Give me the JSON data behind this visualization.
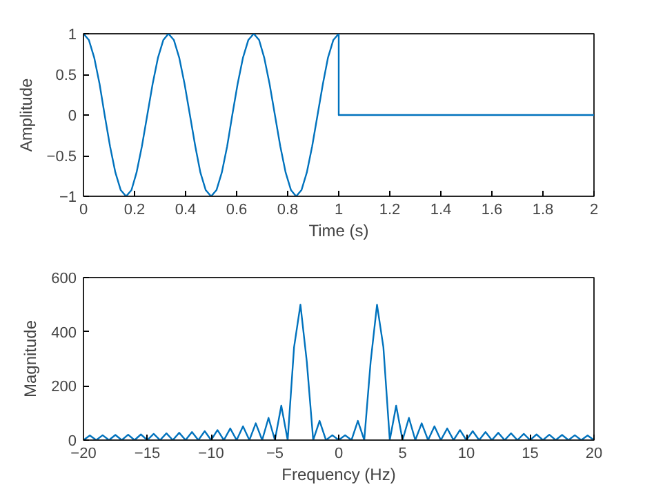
{
  "chart_data": [
    {
      "type": "line",
      "xlabel": "Time (s)",
      "ylabel": "Amplitude",
      "xlim": [
        0,
        2
      ],
      "ylim": [
        -1,
        1
      ],
      "xticks": [
        0,
        0.2,
        0.4,
        0.6,
        0.8,
        1,
        1.2,
        1.4,
        1.6,
        1.8,
        2
      ],
      "yticks": [
        -1,
        -0.5,
        0,
        0.5,
        1
      ],
      "series": [
        {
          "color": "#0072bd",
          "x": [
            0,
            0.021,
            0.042,
            0.063,
            0.083,
            0.104,
            0.125,
            0.146,
            0.167,
            0.188,
            0.208,
            0.229,
            0.25,
            0.271,
            0.292,
            0.313,
            0.333,
            0.354,
            0.375,
            0.396,
            0.417,
            0.438,
            0.458,
            0.479,
            0.5,
            0.521,
            0.542,
            0.563,
            0.583,
            0.604,
            0.625,
            0.646,
            0.667,
            0.688,
            0.708,
            0.729,
            0.75,
            0.771,
            0.792,
            0.813,
            0.833,
            0.854,
            0.875,
            0.896,
            0.917,
            0.938,
            0.958,
            0.979,
            1,
            1,
            2
          ],
          "values": [
            1,
            0.924,
            0.707,
            0.383,
            0,
            -0.383,
            -0.707,
            -0.924,
            -1,
            -0.924,
            -0.707,
            -0.383,
            0,
            0.383,
            0.707,
            0.924,
            1,
            0.924,
            0.707,
            0.383,
            0,
            -0.383,
            -0.707,
            -0.924,
            -1,
            -0.924,
            -0.707,
            -0.383,
            0,
            0.383,
            0.707,
            0.924,
            1,
            0.924,
            0.707,
            0.383,
            0,
            -0.383,
            -0.707,
            -0.924,
            -1,
            -0.924,
            -0.707,
            -0.383,
            0,
            0.383,
            0.707,
            0.924,
            1,
            0,
            0
          ]
        }
      ]
    },
    {
      "type": "line",
      "xlabel": "Frequency (Hz)",
      "ylabel": "Magnitude",
      "xlim": [
        -20,
        20
      ],
      "ylim": [
        0,
        600
      ],
      "xticks": [
        -20,
        -15,
        -10,
        -5,
        0,
        5,
        10,
        15,
        20
      ],
      "yticks": [
        0,
        200,
        400,
        600
      ],
      "series": [
        {
          "color": "#0072bd",
          "x": [
            -20,
            -19.5,
            -19,
            -18.5,
            -18,
            -17.5,
            -17,
            -16.5,
            -16,
            -15.5,
            -15,
            -14.5,
            -14,
            -13.5,
            -13,
            -12.5,
            -12,
            -11.5,
            -11,
            -10.5,
            -10,
            -9.5,
            -9,
            -8.5,
            -8,
            -7.5,
            -7,
            -6.5,
            -6,
            -5.5,
            -5,
            -4.5,
            -4,
            -3.5,
            -3,
            -2.5,
            -2,
            -1.5,
            -1,
            -0.5,
            0,
            0.5,
            1,
            1.5,
            2,
            2.5,
            3,
            3.5,
            4,
            4.5,
            5,
            5.5,
            6,
            6.5,
            7,
            7.5,
            8,
            8.5,
            9,
            9.5,
            10,
            10.5,
            11,
            11.5,
            12,
            12.5,
            13,
            13.5,
            14,
            14.5,
            15,
            15.5,
            16,
            16.5,
            17,
            17.5,
            18,
            18.5,
            19,
            19.5,
            20
          ],
          "values": [
            0,
            17,
            0,
            18,
            0,
            19,
            0,
            20,
            0,
            21,
            0,
            23,
            0,
            25,
            0,
            27,
            0,
            30,
            0,
            33,
            0,
            37,
            0,
            43,
            0,
            51,
            0,
            62,
            0,
            82,
            0,
            127,
            0,
            343,
            500,
            289,
            0,
            71,
            0,
            18,
            0,
            18,
            0,
            71,
            0,
            289,
            500,
            343,
            0,
            127,
            0,
            82,
            0,
            62,
            0,
            51,
            0,
            43,
            0,
            37,
            0,
            33,
            0,
            30,
            0,
            27,
            0,
            25,
            0,
            23,
            0,
            21,
            0,
            20,
            0,
            19,
            0,
            18,
            0,
            17,
            0
          ]
        }
      ]
    }
  ]
}
